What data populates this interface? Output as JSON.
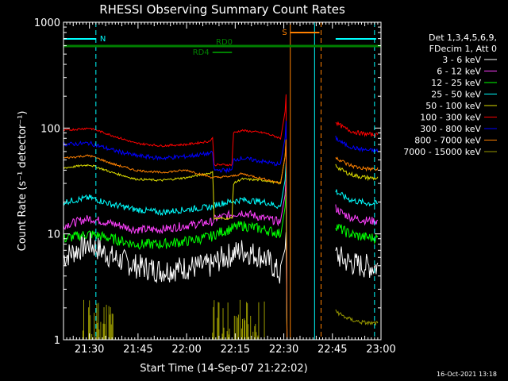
{
  "chart_data": {
    "type": "line",
    "title": "RHESSI Observing Summary Count Rates",
    "xlabel": "Start Time (14-Sep-07 21:22:02)",
    "ylabel": "Count Rate (s⁻¹ detector⁻¹)",
    "y_scale": "log",
    "ylim": [
      1,
      1000
    ],
    "xlim_minutes": [
      0,
      98
    ],
    "x_ticks": [
      {
        "min": 8,
        "label": "21:30"
      },
      {
        "min": 23,
        "label": "21:45"
      },
      {
        "min": 38,
        "label": "22:00"
      },
      {
        "min": 53,
        "label": "22:15"
      },
      {
        "min": 68,
        "label": "22:30"
      },
      {
        "min": 83,
        "label": "22:45"
      },
      {
        "min": 98,
        "label": "23:00"
      }
    ],
    "y_ticks": [
      {
        "value": 1,
        "label": "1"
      },
      {
        "value": 10,
        "label": "10"
      },
      {
        "value": 100,
        "label": "100"
      },
      {
        "value": 1000,
        "label": "1000"
      }
    ],
    "legend_header": [
      "Det 1,3,4,5,6,9,",
      "FDecim 1, Att 0"
    ],
    "legend_position": "right",
    "series": [
      {
        "name": "3 - 6 keV",
        "color": "#ffffff",
        "points": [
          [
            0,
            6
          ],
          [
            8,
            8
          ],
          [
            15,
            6
          ],
          [
            22,
            5
          ],
          [
            30,
            4.5
          ],
          [
            38,
            4.8
          ],
          [
            46,
            5
          ],
          [
            47,
            5.5
          ],
          [
            55,
            7
          ],
          [
            62,
            6
          ],
          [
            67,
            4
          ]
        ],
        "noise": 0.12
      },
      {
        "name": "6 - 12 keV",
        "color": "#ff40ff",
        "points": [
          [
            0,
            12
          ],
          [
            8,
            14
          ],
          [
            15,
            12.5
          ],
          [
            22,
            11
          ],
          [
            30,
            11
          ],
          [
            38,
            12
          ],
          [
            46,
            13
          ],
          [
            47,
            14
          ],
          [
            55,
            16
          ],
          [
            62,
            14
          ],
          [
            67,
            13
          ]
        ],
        "noise": 0.04
      },
      {
        "name": "12 - 25 keV",
        "color": "#00ff00",
        "points": [
          [
            0,
            9
          ],
          [
            8,
            10
          ],
          [
            15,
            9
          ],
          [
            22,
            8
          ],
          [
            30,
            8
          ],
          [
            38,
            8.5
          ],
          [
            46,
            9.5
          ],
          [
            47,
            10
          ],
          [
            55,
            12
          ],
          [
            62,
            11
          ],
          [
            67,
            10
          ]
        ],
        "noise": 0.05
      },
      {
        "name": "25 - 50 keV",
        "color": "#00ffff",
        "points": [
          [
            0,
            20
          ],
          [
            8,
            22
          ],
          [
            15,
            19
          ],
          [
            22,
            17
          ],
          [
            30,
            16
          ],
          [
            38,
            17
          ],
          [
            46,
            18
          ],
          [
            47,
            19
          ],
          [
            55,
            21
          ],
          [
            62,
            20
          ],
          [
            67,
            18
          ]
        ],
        "noise": 0.03
      },
      {
        "name": "50 - 100 keV",
        "color": "#dddd00",
        "points": [
          [
            0,
            42
          ],
          [
            8,
            45
          ],
          [
            15,
            38
          ],
          [
            22,
            33
          ],
          [
            30,
            32
          ],
          [
            38,
            34
          ],
          [
            46,
            38
          ],
          [
            46.5,
            14
          ],
          [
            52,
            14
          ],
          [
            52.5,
            30
          ],
          [
            55,
            33
          ],
          [
            62,
            32
          ],
          [
            67,
            30
          ]
        ],
        "noise": 0.01
      },
      {
        "name": "100 - 300 keV",
        "color": "#ff0000",
        "points": [
          [
            0,
            95
          ],
          [
            8,
            100
          ],
          [
            15,
            85
          ],
          [
            22,
            72
          ],
          [
            30,
            68
          ],
          [
            38,
            70
          ],
          [
            45,
            75
          ],
          [
            46,
            80
          ],
          [
            46.5,
            45
          ],
          [
            52,
            45
          ],
          [
            52.5,
            90
          ],
          [
            55,
            95
          ],
          [
            62,
            90
          ],
          [
            67,
            80
          ]
        ],
        "noise": 0.01
      },
      {
        "name": "300 - 800 keV",
        "color": "#0000ff",
        "points": [
          [
            0,
            70
          ],
          [
            8,
            72
          ],
          [
            15,
            62
          ],
          [
            22,
            55
          ],
          [
            30,
            52
          ],
          [
            38,
            54
          ],
          [
            46,
            58
          ],
          [
            46.5,
            40
          ],
          [
            52,
            40
          ],
          [
            52.5,
            50
          ],
          [
            55,
            52
          ],
          [
            62,
            48
          ],
          [
            67,
            45
          ]
        ],
        "noise": 0.02
      },
      {
        "name": "800 - 7000 keV",
        "color": "#ff8000",
        "points": [
          [
            0,
            52
          ],
          [
            8,
            55
          ],
          [
            15,
            46
          ],
          [
            22,
            40
          ],
          [
            30,
            38
          ],
          [
            38,
            40
          ],
          [
            46,
            34
          ],
          [
            52,
            35
          ],
          [
            55,
            37
          ],
          [
            62,
            33
          ],
          [
            67,
            30
          ]
        ],
        "noise": 0.01
      },
      {
        "name": "7000 - 15000 keV",
        "color": "#999900",
        "points": [],
        "noise": 0
      }
    ],
    "after_gap_values": {
      "3 - 6 keV": 4.8,
      "6 - 12 keV": 13,
      "12 - 25 keV": 9,
      "25 - 50 keV": 19,
      "50 - 100 keV": 33,
      "100 - 300 keV": 85,
      "300 - 800 keV": 60,
      "800 - 7000 keV": 40,
      "7000 - 15000 keV": 1.4
    },
    "gap_minutes": [
      69,
      84
    ],
    "flags": [
      {
        "label": "N",
        "color": "#00ffff",
        "start": 0,
        "end": 10,
        "resume": 84
      },
      {
        "label": "S",
        "color": "#ff8000",
        "start": 70,
        "end": 79
      },
      {
        "label": "RD0",
        "color": "#008000",
        "start": 0,
        "end": 98
      },
      {
        "label": "RD4",
        "color": "#008000",
        "start": 46,
        "end": 52
      }
    ],
    "vertical_markers": [
      {
        "min": 0,
        "color": "#00ffff",
        "style": "solid"
      },
      {
        "min": 10,
        "color": "#00ffff",
        "style": "dashed"
      },
      {
        "min": 70,
        "color": "#ff8000",
        "style": "solid"
      },
      {
        "min": 77.5,
        "color": "#00ffff",
        "style": "solid"
      },
      {
        "min": 79.5,
        "color": "#ff8000",
        "style": "dashed"
      },
      {
        "min": 96,
        "color": "#00ffff",
        "style": "dashed"
      }
    ],
    "footer_timestamp": "16-Oct-2021 13:18",
    "grid": false
  }
}
